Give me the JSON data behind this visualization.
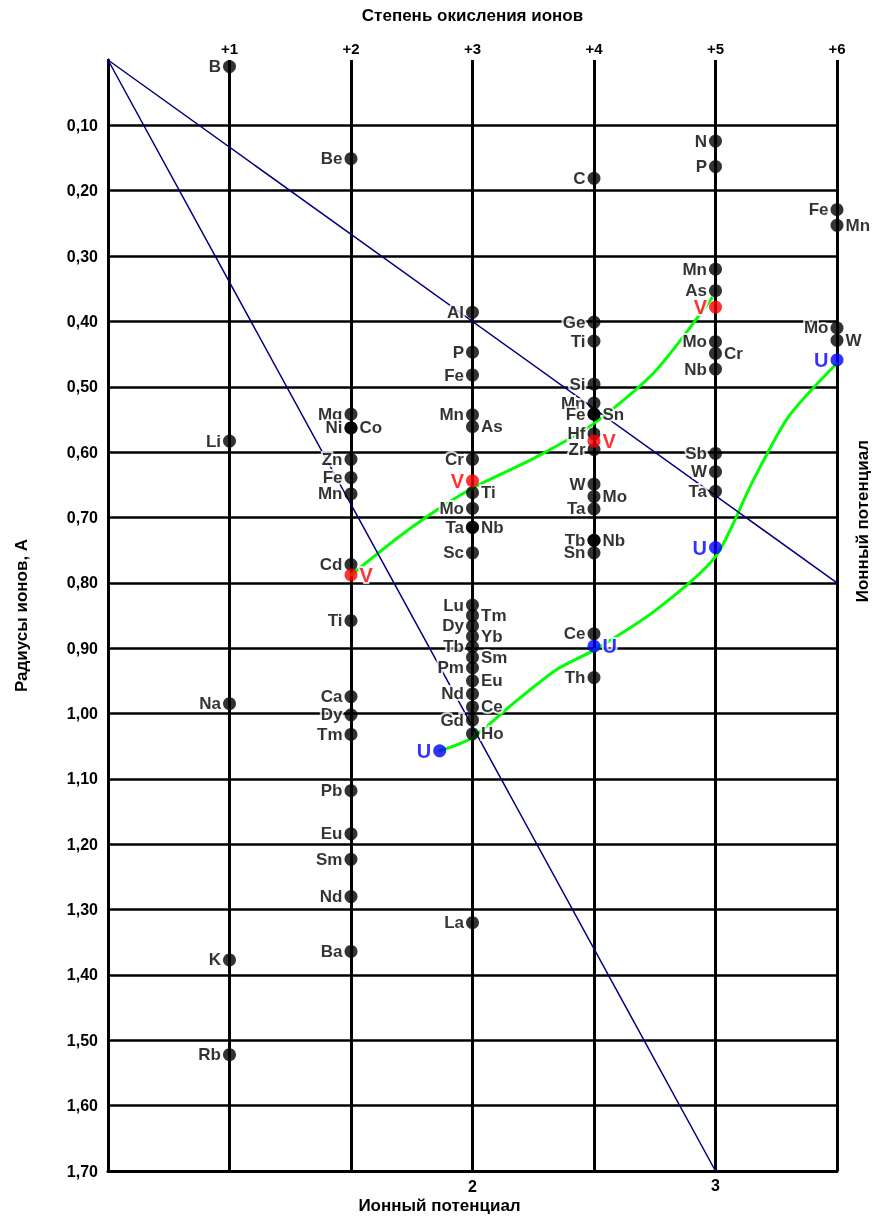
{
  "chart_data": {
    "type": "scatter",
    "xlabel": "Степень окисления ионов",
    "ylabel": "Радиусы ионов, А",
    "annotations": [
      "Ионный потенциал",
      "Ионный потенциал",
      "2",
      {
        "text": "3",
        "x": 5,
        "y": 1.7
      }
    ],
    "xlim": [
      0,
      6
    ],
    "xticks": [
      {
        "value": 1,
        "label": "+1"
      },
      {
        "value": 2,
        "label": "+2"
      },
      {
        "value": 3,
        "label": "+3"
      },
      {
        "value": 4,
        "label": "+4"
      },
      {
        "value": 5,
        "label": "+5"
      },
      {
        "value": 6,
        "label": "+6"
      }
    ],
    "ylim": [
      1.7,
      0
    ],
    "yticks": [
      {
        "value": 0.1,
        "label": "0,10"
      },
      {
        "value": 0.2,
        "label": "0,20"
      },
      {
        "value": 0.3,
        "label": "0,30"
      },
      {
        "value": 0.4,
        "label": "0,40"
      },
      {
        "value": 0.5,
        "label": "0,50"
      },
      {
        "value": 0.6,
        "label": "0,60"
      },
      {
        "value": 0.7,
        "label": "0,70"
      },
      {
        "value": 0.8,
        "label": "0,80"
      },
      {
        "value": 0.9,
        "label": "0,90"
      },
      {
        "value": 1.0,
        "label": "1,00"
      },
      {
        "value": 1.1,
        "label": "1,10"
      },
      {
        "value": 1.2,
        "label": "1,20"
      },
      {
        "value": 1.3,
        "label": "1,30"
      },
      {
        "value": 1.4,
        "label": "1,40"
      },
      {
        "value": 1.5,
        "label": "1,50"
      },
      {
        "value": 1.6,
        "label": "1,60"
      },
      {
        "value": 1.7,
        "label": "1,70"
      }
    ],
    "grid": true,
    "series": [
      {
        "color": "#000000",
        "marker": "circle",
        "x": [
          1,
          1,
          1,
          1,
          1,
          2,
          2,
          2,
          2,
          2,
          2,
          2,
          2,
          2,
          2,
          2,
          2,
          2,
          2,
          2,
          2,
          2,
          3,
          3,
          3,
          3,
          3,
          3,
          3,
          3,
          3,
          3,
          3,
          3,
          3,
          3,
          3,
          3,
          3,
          3,
          3,
          3,
          3,
          3,
          3,
          3,
          4,
          4,
          4,
          4,
          4,
          4,
          4,
          4,
          4,
          4,
          4,
          4,
          4,
          4,
          4,
          4,
          4,
          5,
          5,
          5,
          5,
          5,
          5,
          5,
          5,
          5,
          5,
          6,
          6,
          6,
          6
        ],
        "values": [
          0.01,
          0.583,
          0.985,
          1.377,
          1.522,
          0.151,
          0.542,
          0.563,
          0.563,
          0.611,
          0.639,
          0.664,
          0.772,
          0.858,
          0.974,
          1.002,
          1.032,
          1.118,
          1.184,
          1.223,
          1.28,
          1.364,
          0.386,
          0.447,
          0.482,
          0.543,
          0.561,
          0.611,
          0.662,
          0.686,
          0.715,
          0.715,
          0.754,
          1.32,
          0.834,
          0.85,
          0.866,
          0.882,
          0.898,
          0.914,
          0.93,
          0.95,
          0.97,
          0.99,
          1.01,
          1.031,
          0.181,
          0.401,
          0.43,
          0.496,
          0.525,
          0.542,
          0.542,
          0.572,
          0.596,
          0.649,
          0.668,
          0.687,
          0.735,
          0.735,
          0.754,
          0.878,
          0.945,
          0.124,
          0.163,
          0.32,
          0.353,
          0.431,
          0.449,
          0.473,
          0.602,
          0.63,
          0.66,
          0.229,
          0.253,
          0.41,
          0.429
        ],
        "value_labels": [
          "B",
          "Li",
          "Na",
          "K",
          "Rb",
          "Be",
          "Mg",
          "Co",
          "Ni",
          "Zn",
          "Fe",
          "Mn",
          "Cd",
          "Ti",
          "Ca",
          "Dy",
          "Tm",
          "Pb",
          "Eu",
          "Sm",
          "Nd",
          "Ba",
          "Al",
          "P",
          "Fe",
          "Mn",
          "As",
          "Cr",
          "Ti",
          "Mo",
          "Ta",
          "Nb",
          "Sc",
          "La",
          "Lu",
          "Tm",
          "Dy",
          "Yb",
          "Tb",
          "Sm",
          "Pm",
          "Eu",
          "Nd",
          "Ce",
          "Gd",
          "Ho",
          "C",
          "Ge",
          "Ti",
          "Si",
          "Mn",
          "Sn",
          "Fe",
          "Hf",
          "Zr",
          "W",
          "Mo",
          "Ta",
          "Tb",
          "Nb",
          "Sn",
          "Ce",
          "Th",
          "N",
          "P",
          "Mn",
          "As",
          "Mo",
          "Cr",
          "Nb",
          "Sb",
          "W",
          "Ta",
          "Fe",
          "Mn",
          "Mo",
          "W"
        ]
      },
      {
        "type": "scatter",
        "color": "#ff0000",
        "marker": "circle",
        "x": [
          2,
          3,
          4,
          5
        ],
        "values": [
          0.788,
          0.644,
          0.583,
          0.378
        ],
        "value_labels": [
          "V",
          "V",
          "V",
          "V"
        ]
      },
      {
        "type": "scatter",
        "color": "#0000ff",
        "marker": "circle",
        "x": [
          2.73,
          4,
          5,
          6
        ],
        "values": [
          1.057,
          0.897,
          0.746,
          0.459
        ],
        "value_labels": [
          "U",
          "U",
          "U",
          "U"
        ]
      },
      {
        "type": "line",
        "color": "#00ff00",
        "marker": "none",
        "line_style": "solid",
        "x": [
          2,
          2.5,
          3,
          3.5,
          4,
          4.5,
          4.97
        ],
        "values": [
          0.788,
          0.715,
          0.655,
          0.61,
          0.556,
          0.477,
          0.364
        ]
      },
      {
        "type": "line",
        "color": "#00ff00",
        "marker": "none",
        "line_style": "solid",
        "x": [
          2.73,
          3,
          3.3,
          3.69,
          4,
          4.5,
          5,
          5.3,
          5.6,
          6
        ],
        "values": [
          1.057,
          1.037,
          0.99,
          0.933,
          0.903,
          0.843,
          0.76,
          0.647,
          0.546,
          0.464
        ]
      },
      {
        "type": "line",
        "color": "#000080",
        "marker": "none",
        "line_style": "solid",
        "x": [
          0,
          6
        ],
        "values": [
          0,
          0.8
        ]
      },
      {
        "type": "line",
        "color": "#000080",
        "marker": "none",
        "line_style": "solid",
        "x": [
          0,
          5
        ],
        "values": [
          0,
          1.7
        ]
      }
    ]
  }
}
